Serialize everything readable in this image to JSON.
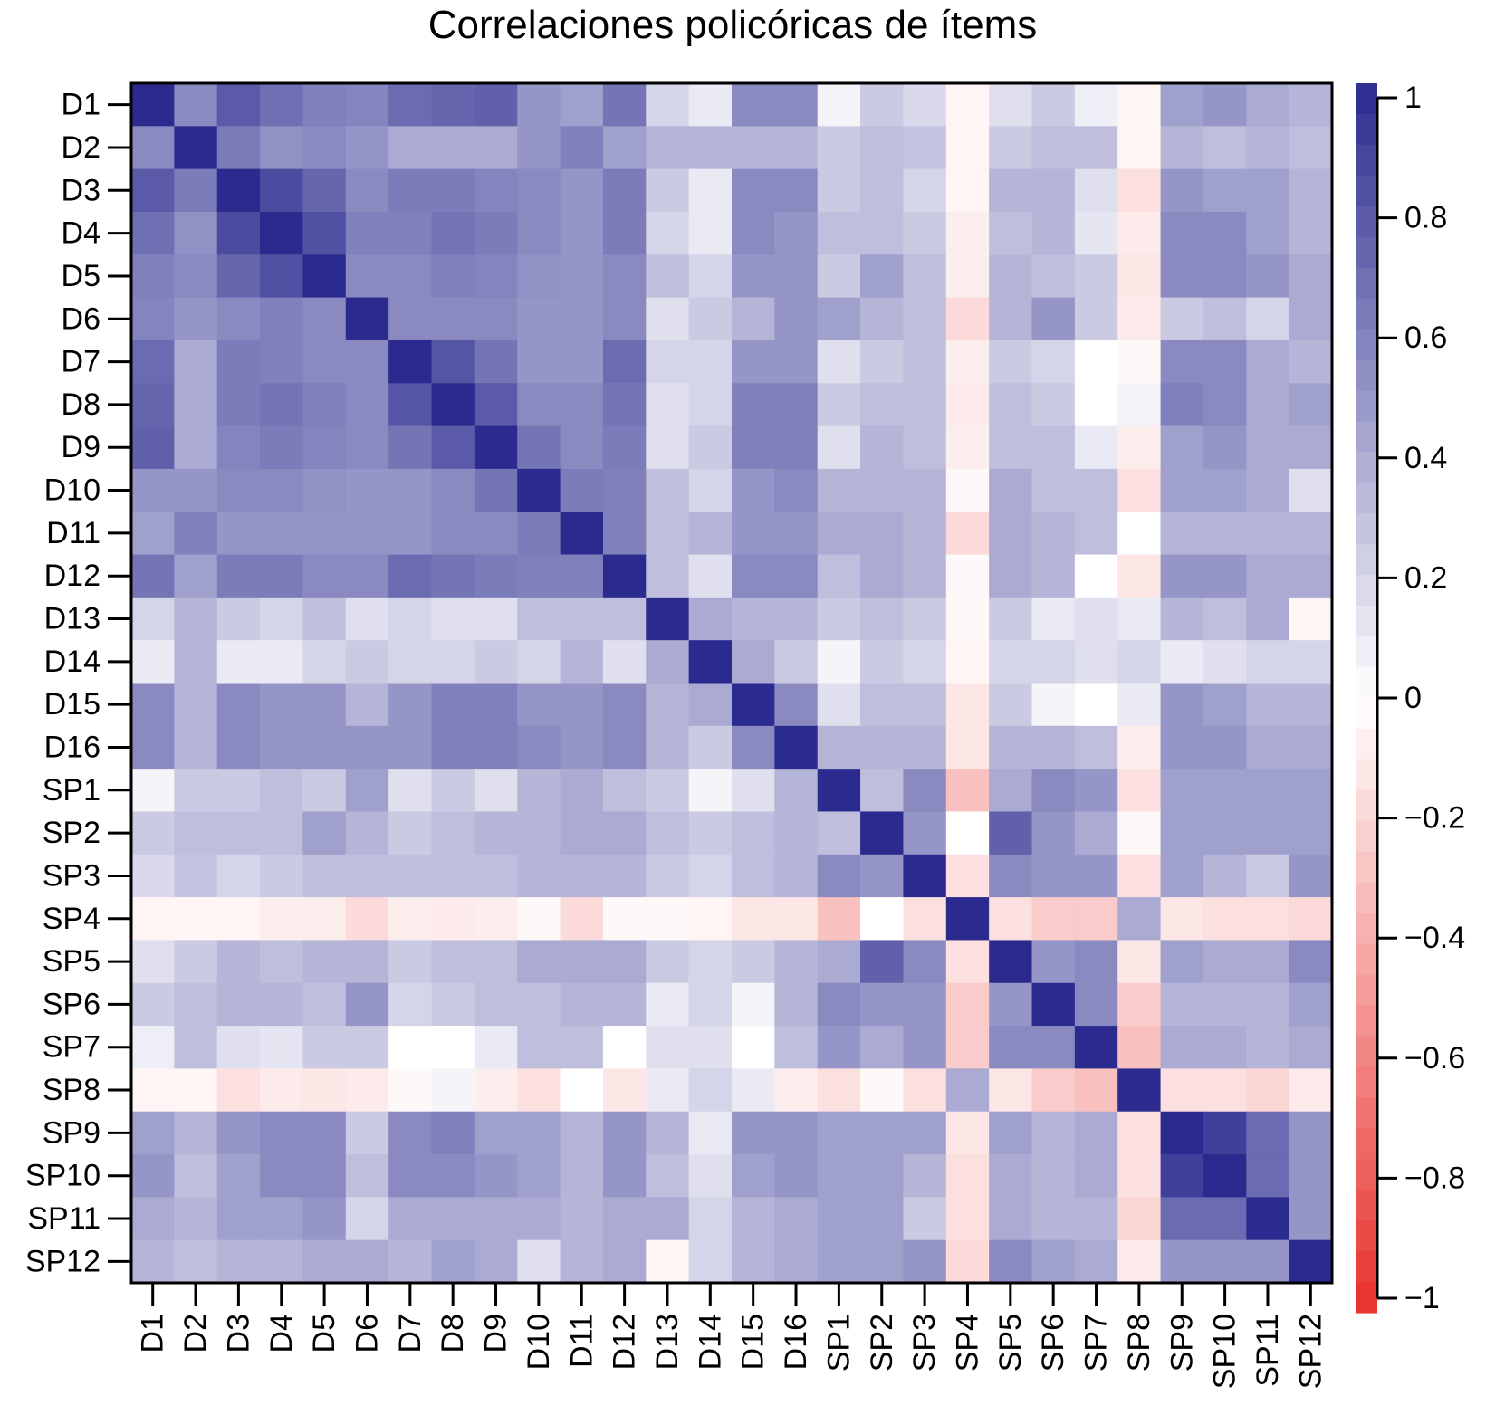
{
  "chart_data": {
    "type": "heatmap",
    "title": "Correlaciones policóricas de ítems",
    "labels": [
      "D1",
      "D2",
      "D3",
      "D4",
      "D5",
      "D6",
      "D7",
      "D8",
      "D9",
      "D10",
      "D11",
      "D12",
      "D13",
      "D14",
      "D15",
      "D16",
      "SP1",
      "SP2",
      "SP3",
      "SP4",
      "SP5",
      "SP6",
      "SP7",
      "SP8",
      "SP9",
      "SP10",
      "SP11",
      "SP12"
    ],
    "values": [
      [
        1.0,
        0.55,
        0.78,
        0.68,
        0.6,
        0.58,
        0.7,
        0.72,
        0.75,
        0.5,
        0.45,
        0.65,
        0.2,
        0.1,
        0.55,
        0.55,
        0.05,
        0.25,
        0.18,
        -0.05,
        0.15,
        0.25,
        0.08,
        -0.05,
        0.45,
        0.5,
        0.4,
        0.35
      ],
      [
        0.55,
        1.0,
        0.62,
        0.52,
        0.55,
        0.5,
        0.4,
        0.4,
        0.4,
        0.5,
        0.6,
        0.45,
        0.35,
        0.35,
        0.35,
        0.35,
        0.25,
        0.3,
        0.28,
        -0.05,
        0.25,
        0.3,
        0.3,
        -0.05,
        0.35,
        0.3,
        0.35,
        0.3
      ],
      [
        0.78,
        0.62,
        1.0,
        0.85,
        0.72,
        0.55,
        0.62,
        0.62,
        0.58,
        0.55,
        0.5,
        0.62,
        0.25,
        0.1,
        0.55,
        0.55,
        0.25,
        0.3,
        0.2,
        -0.05,
        0.35,
        0.35,
        0.15,
        -0.15,
        0.5,
        0.45,
        0.45,
        0.35
      ],
      [
        0.68,
        0.52,
        0.85,
        1.0,
        0.82,
        0.6,
        0.6,
        0.65,
        0.62,
        0.55,
        0.5,
        0.62,
        0.2,
        0.1,
        0.55,
        0.5,
        0.3,
        0.3,
        0.25,
        -0.08,
        0.3,
        0.35,
        0.12,
        -0.1,
        0.55,
        0.55,
        0.45,
        0.35
      ],
      [
        0.6,
        0.55,
        0.72,
        0.82,
        1.0,
        0.55,
        0.55,
        0.6,
        0.58,
        0.52,
        0.5,
        0.55,
        0.3,
        0.2,
        0.5,
        0.5,
        0.25,
        0.45,
        0.3,
        -0.08,
        0.35,
        0.3,
        0.25,
        -0.12,
        0.55,
        0.55,
        0.5,
        0.4
      ],
      [
        0.58,
        0.5,
        0.55,
        0.6,
        0.55,
        1.0,
        0.55,
        0.55,
        0.55,
        0.5,
        0.5,
        0.55,
        0.15,
        0.25,
        0.35,
        0.5,
        0.45,
        0.35,
        0.3,
        -0.18,
        0.35,
        0.5,
        0.25,
        -0.1,
        0.25,
        0.3,
        0.2,
        0.4
      ],
      [
        0.7,
        0.4,
        0.62,
        0.6,
        0.55,
        0.55,
        1.0,
        0.8,
        0.65,
        0.5,
        0.5,
        0.7,
        0.2,
        0.2,
        0.5,
        0.5,
        0.15,
        0.25,
        0.3,
        -0.08,
        0.25,
        0.2,
        0.0,
        -0.03,
        0.55,
        0.55,
        0.4,
        0.35
      ],
      [
        0.72,
        0.4,
        0.62,
        0.65,
        0.6,
        0.55,
        0.8,
        1.0,
        0.78,
        0.55,
        0.55,
        0.65,
        0.15,
        0.2,
        0.6,
        0.6,
        0.25,
        0.3,
        0.3,
        -0.1,
        0.3,
        0.25,
        0.0,
        0.05,
        0.6,
        0.55,
        0.4,
        0.45
      ],
      [
        0.75,
        0.4,
        0.58,
        0.62,
        0.58,
        0.55,
        0.65,
        0.78,
        1.0,
        0.65,
        0.55,
        0.62,
        0.15,
        0.25,
        0.6,
        0.6,
        0.15,
        0.35,
        0.3,
        -0.08,
        0.3,
        0.3,
        0.1,
        -0.08,
        0.45,
        0.5,
        0.4,
        0.4
      ],
      [
        0.5,
        0.5,
        0.55,
        0.55,
        0.52,
        0.5,
        0.5,
        0.55,
        0.65,
        1.0,
        0.62,
        0.6,
        0.3,
        0.2,
        0.5,
        0.55,
        0.35,
        0.35,
        0.35,
        -0.03,
        0.4,
        0.3,
        0.3,
        -0.15,
        0.45,
        0.45,
        0.4,
        0.15
      ],
      [
        0.45,
        0.6,
        0.5,
        0.5,
        0.5,
        0.5,
        0.5,
        0.55,
        0.55,
        0.62,
        1.0,
        0.6,
        0.3,
        0.35,
        0.5,
        0.5,
        0.4,
        0.4,
        0.35,
        -0.18,
        0.4,
        0.35,
        0.3,
        0.0,
        0.35,
        0.35,
        0.35,
        0.35
      ],
      [
        0.65,
        0.45,
        0.62,
        0.62,
        0.55,
        0.55,
        0.7,
        0.65,
        0.62,
        0.6,
        0.6,
        1.0,
        0.3,
        0.15,
        0.55,
        0.55,
        0.3,
        0.4,
        0.35,
        -0.03,
        0.4,
        0.35,
        0.0,
        -0.12,
        0.5,
        0.5,
        0.4,
        0.4
      ],
      [
        0.2,
        0.35,
        0.25,
        0.2,
        0.3,
        0.15,
        0.2,
        0.15,
        0.15,
        0.3,
        0.3,
        0.3,
        1.0,
        0.4,
        0.35,
        0.35,
        0.25,
        0.3,
        0.25,
        -0.03,
        0.25,
        0.1,
        0.15,
        0.1,
        0.35,
        0.3,
        0.4,
        -0.05
      ],
      [
        0.1,
        0.35,
        0.1,
        0.1,
        0.2,
        0.25,
        0.2,
        0.2,
        0.25,
        0.2,
        0.35,
        0.15,
        0.4,
        1.0,
        0.4,
        0.25,
        0.05,
        0.25,
        0.2,
        -0.05,
        0.2,
        0.2,
        0.15,
        0.2,
        0.1,
        0.15,
        0.2,
        0.2
      ],
      [
        0.55,
        0.35,
        0.55,
        0.5,
        0.5,
        0.35,
        0.5,
        0.6,
        0.6,
        0.5,
        0.5,
        0.55,
        0.35,
        0.4,
        1.0,
        0.55,
        0.15,
        0.3,
        0.3,
        -0.12,
        0.25,
        0.05,
        0.0,
        0.1,
        0.5,
        0.45,
        0.35,
        0.35
      ],
      [
        0.55,
        0.35,
        0.55,
        0.5,
        0.5,
        0.5,
        0.5,
        0.6,
        0.6,
        0.55,
        0.5,
        0.55,
        0.35,
        0.25,
        0.55,
        1.0,
        0.35,
        0.35,
        0.35,
        -0.12,
        0.35,
        0.35,
        0.3,
        -0.08,
        0.5,
        0.5,
        0.4,
        0.4
      ],
      [
        0.05,
        0.25,
        0.25,
        0.3,
        0.25,
        0.45,
        0.15,
        0.25,
        0.15,
        0.35,
        0.4,
        0.3,
        0.25,
        0.05,
        0.15,
        0.35,
        1.0,
        0.3,
        0.55,
        -0.3,
        0.4,
        0.55,
        0.5,
        -0.15,
        0.45,
        0.45,
        0.45,
        0.45
      ],
      [
        0.25,
        0.3,
        0.3,
        0.3,
        0.45,
        0.35,
        0.25,
        0.3,
        0.35,
        0.35,
        0.4,
        0.4,
        0.3,
        0.25,
        0.3,
        0.35,
        0.3,
        1.0,
        0.5,
        0.0,
        0.75,
        0.5,
        0.4,
        -0.03,
        0.45,
        0.45,
        0.45,
        0.45
      ],
      [
        0.18,
        0.28,
        0.2,
        0.25,
        0.3,
        0.3,
        0.3,
        0.3,
        0.3,
        0.35,
        0.35,
        0.35,
        0.25,
        0.2,
        0.3,
        0.35,
        0.55,
        0.5,
        1.0,
        -0.15,
        0.55,
        0.5,
        0.5,
        -0.15,
        0.45,
        0.35,
        0.25,
        0.5
      ],
      [
        -0.05,
        -0.05,
        -0.05,
        -0.08,
        -0.08,
        -0.18,
        -0.08,
        -0.1,
        -0.08,
        -0.03,
        -0.18,
        -0.03,
        -0.03,
        -0.05,
        -0.12,
        -0.12,
        -0.3,
        0.0,
        -0.15,
        1.0,
        -0.15,
        -0.25,
        -0.25,
        0.4,
        -0.12,
        -0.15,
        -0.15,
        -0.18
      ],
      [
        0.15,
        0.25,
        0.35,
        0.3,
        0.35,
        0.35,
        0.25,
        0.3,
        0.3,
        0.4,
        0.4,
        0.4,
        0.25,
        0.2,
        0.25,
        0.35,
        0.4,
        0.75,
        0.55,
        -0.15,
        1.0,
        0.5,
        0.55,
        -0.12,
        0.45,
        0.4,
        0.4,
        0.55
      ],
      [
        0.25,
        0.3,
        0.35,
        0.35,
        0.3,
        0.5,
        0.2,
        0.25,
        0.3,
        0.3,
        0.35,
        0.35,
        0.1,
        0.2,
        0.05,
        0.35,
        0.55,
        0.5,
        0.5,
        -0.25,
        0.5,
        1.0,
        0.55,
        -0.25,
        0.35,
        0.35,
        0.35,
        0.45
      ],
      [
        0.08,
        0.3,
        0.15,
        0.12,
        0.25,
        0.25,
        0.0,
        0.0,
        0.1,
        0.3,
        0.3,
        0.0,
        0.15,
        0.15,
        0.0,
        0.3,
        0.5,
        0.4,
        0.5,
        -0.25,
        0.55,
        0.55,
        1.0,
        -0.3,
        0.4,
        0.4,
        0.35,
        0.4
      ],
      [
        -0.05,
        -0.05,
        -0.15,
        -0.1,
        -0.12,
        -0.1,
        -0.03,
        0.05,
        -0.08,
        -0.15,
        0.0,
        -0.12,
        0.1,
        0.2,
        0.1,
        -0.08,
        -0.15,
        -0.03,
        -0.15,
        0.4,
        -0.12,
        -0.25,
        -0.3,
        1.0,
        -0.15,
        -0.15,
        -0.2,
        -0.1
      ],
      [
        0.45,
        0.35,
        0.5,
        0.55,
        0.55,
        0.25,
        0.55,
        0.6,
        0.45,
        0.45,
        0.35,
        0.5,
        0.35,
        0.1,
        0.5,
        0.5,
        0.45,
        0.45,
        0.45,
        -0.12,
        0.45,
        0.35,
        0.4,
        -0.15,
        1.0,
        0.9,
        0.7,
        0.5
      ],
      [
        0.5,
        0.3,
        0.45,
        0.55,
        0.55,
        0.3,
        0.55,
        0.55,
        0.5,
        0.45,
        0.35,
        0.5,
        0.3,
        0.15,
        0.45,
        0.5,
        0.45,
        0.45,
        0.35,
        -0.15,
        0.4,
        0.35,
        0.4,
        -0.15,
        0.9,
        1.0,
        0.7,
        0.5
      ],
      [
        0.4,
        0.35,
        0.45,
        0.45,
        0.5,
        0.2,
        0.4,
        0.4,
        0.4,
        0.4,
        0.35,
        0.4,
        0.4,
        0.2,
        0.35,
        0.4,
        0.45,
        0.45,
        0.25,
        -0.15,
        0.4,
        0.35,
        0.35,
        -0.2,
        0.7,
        0.7,
        1.0,
        0.5
      ],
      [
        0.35,
        0.3,
        0.35,
        0.35,
        0.4,
        0.4,
        0.35,
        0.45,
        0.4,
        0.15,
        0.35,
        0.4,
        -0.05,
        0.2,
        0.35,
        0.4,
        0.45,
        0.45,
        0.5,
        -0.18,
        0.55,
        0.45,
        0.4,
        -0.1,
        0.5,
        0.5,
        0.5,
        1.0
      ]
    ],
    "colorbar": {
      "ticks": [
        1,
        0.8,
        0.6,
        0.4,
        0.2,
        0,
        -0.2,
        -0.4,
        -0.6,
        -0.8,
        -1
      ],
      "tick_labels": [
        "1",
        "0.8",
        "0.6",
        "0.4",
        "0.2",
        "0",
        "−0.2",
        "−0.4",
        "−0.6",
        "−0.8",
        "−1"
      ],
      "range": [
        -1,
        1
      ]
    },
    "colors": {
      "positive": "#2b2b8f",
      "zero": "#ffffff",
      "negative": "#e8302b"
    },
    "legend_position": "right"
  }
}
